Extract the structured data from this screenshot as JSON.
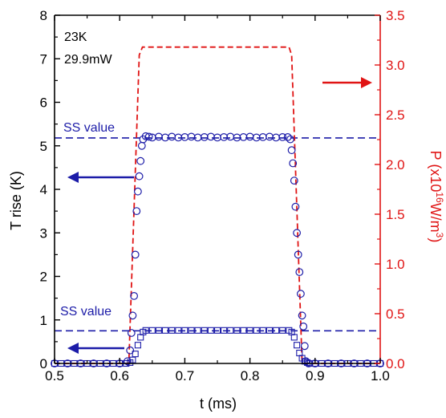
{
  "chart_data": {
    "type": "line",
    "annotations": {
      "line1": "23K",
      "line2": "29.9mW"
    },
    "ss_label": "SS value",
    "x_axis": {
      "label": "t (ms)",
      "range": [
        0.5,
        1.0
      ],
      "ticks": [
        "0.5",
        "0.6",
        "0.7",
        "0.8",
        "0.9",
        "1.0"
      ]
    },
    "y_left": {
      "label": "T rise (K)",
      "range": [
        0,
        8
      ],
      "ticks": [
        "0",
        "1",
        "2",
        "3",
        "4",
        "5",
        "6",
        "7",
        "8"
      ]
    },
    "y_right": {
      "label_main": "P (x10",
      "label_exp1": "16",
      "label_mid": "W/m",
      "label_exp2": "3",
      "label_end": ")",
      "range": [
        0,
        3.5
      ],
      "ticks": [
        "0.0",
        "0.5",
        "1.0",
        "1.5",
        "2.0",
        "2.5",
        "3.0",
        "3.5"
      ]
    },
    "colors": {
      "left_series": "#1c1ca8",
      "right_series": "#e01414",
      "axis": "#000000"
    },
    "series": [
      {
        "axis": "right",
        "style": "dashed",
        "x": [
          0.5,
          0.614,
          0.63,
          0.635,
          0.86,
          0.864,
          0.88,
          0.885,
          1.0
        ],
        "y": [
          0,
          0,
          3.1,
          3.18,
          3.18,
          3.1,
          0,
          0,
          0
        ]
      },
      {
        "axis": "left",
        "style": "circles",
        "x": [
          0.5,
          0.52,
          0.54,
          0.56,
          0.58,
          0.6,
          0.612,
          0.616,
          0.618,
          0.62,
          0.622,
          0.624,
          0.626,
          0.628,
          0.63,
          0.632,
          0.634,
          0.636,
          0.64,
          0.645,
          0.65,
          0.66,
          0.67,
          0.68,
          0.69,
          0.7,
          0.71,
          0.72,
          0.73,
          0.74,
          0.75,
          0.76,
          0.77,
          0.78,
          0.79,
          0.8,
          0.81,
          0.82,
          0.83,
          0.84,
          0.85,
          0.858,
          0.862,
          0.864,
          0.866,
          0.868,
          0.87,
          0.872,
          0.874,
          0.876,
          0.878,
          0.88,
          0.882,
          0.884,
          0.886,
          0.89,
          0.9,
          0.92,
          0.94,
          0.96,
          0.98,
          1.0
        ],
        "y": [
          0,
          0,
          0,
          0,
          0,
          0,
          0.05,
          0.3,
          0.7,
          1.1,
          1.55,
          2.5,
          3.5,
          3.95,
          4.3,
          4.65,
          5.0,
          5.15,
          5.22,
          5.21,
          5.19,
          5.21,
          5.19,
          5.21,
          5.19,
          5.2,
          5.21,
          5.19,
          5.2,
          5.21,
          5.19,
          5.2,
          5.21,
          5.19,
          5.2,
          5.21,
          5.19,
          5.2,
          5.21,
          5.19,
          5.2,
          5.2,
          5.15,
          4.9,
          4.6,
          4.2,
          3.6,
          3.0,
          2.5,
          2.1,
          1.6,
          1.1,
          0.85,
          0.4,
          0.05,
          0,
          0,
          0,
          0,
          0,
          0,
          0
        ]
      },
      {
        "axis": "left",
        "style": "squares",
        "x": [
          0.5,
          0.51,
          0.52,
          0.53,
          0.54,
          0.55,
          0.56,
          0.57,
          0.58,
          0.59,
          0.6,
          0.61,
          0.616,
          0.62,
          0.624,
          0.628,
          0.632,
          0.636,
          0.64,
          0.65,
          0.66,
          0.67,
          0.68,
          0.69,
          0.7,
          0.71,
          0.72,
          0.73,
          0.74,
          0.75,
          0.76,
          0.77,
          0.78,
          0.79,
          0.8,
          0.81,
          0.82,
          0.83,
          0.84,
          0.85,
          0.86,
          0.864,
          0.868,
          0.872,
          0.876,
          0.88,
          0.884,
          0.888,
          0.892,
          0.9,
          0.91,
          0.92,
          0.93,
          0.94,
          0.95,
          0.96,
          0.97,
          0.98,
          0.99,
          1.0
        ],
        "y": [
          0,
          0,
          0,
          0,
          0,
          0,
          0,
          0,
          0,
          0,
          0,
          0,
          0.02,
          0.08,
          0.22,
          0.42,
          0.6,
          0.72,
          0.76,
          0.76,
          0.76,
          0.76,
          0.76,
          0.76,
          0.76,
          0.76,
          0.76,
          0.76,
          0.76,
          0.76,
          0.76,
          0.76,
          0.76,
          0.76,
          0.76,
          0.76,
          0.76,
          0.76,
          0.76,
          0.76,
          0.76,
          0.72,
          0.6,
          0.42,
          0.24,
          0.12,
          0.05,
          0.02,
          0,
          0,
          0,
          0,
          0,
          0,
          0,
          0,
          0,
          0,
          0,
          0
        ]
      }
    ],
    "reference_lines": [
      {
        "axis": "left",
        "value": 5.18,
        "label": "SS value"
      },
      {
        "axis": "left",
        "value": 0.75,
        "label": "SS value"
      }
    ]
  }
}
